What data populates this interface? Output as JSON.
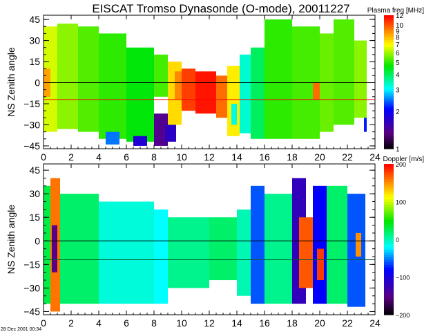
{
  "title": "EISCAT Tromso Dynasonde (O-mode),  20011227",
  "footer": "28 Dec 2001 00:34",
  "chart_data": [
    {
      "type": "heatmap",
      "ylabel": "NS Zenith angle",
      "xlim": [
        0,
        24
      ],
      "ylim": [
        -47,
        48
      ],
      "xticks": [
        "0",
        "2",
        "4",
        "6",
        "8",
        "10",
        "12",
        "14",
        "16",
        "18",
        "20",
        "22",
        "24"
      ],
      "yticks": [
        "45",
        "30",
        "15",
        "0",
        "-15",
        "-30",
        "-45"
      ],
      "hlines": [
        {
          "y": 0,
          "color": "#000000"
        },
        {
          "y": -12,
          "color": "#ff0000"
        }
      ],
      "colorbar": {
        "label": "Plasma freq [MHz]",
        "scale": "log",
        "range": [
          1,
          12
        ],
        "ticks": [
          "1",
          "2",
          "3",
          "4",
          "5",
          "6",
          "7",
          "8",
          "9",
          "10",
          "12"
        ]
      },
      "cells_note": "blocks: [hour_start, hour_end, angle_min, angle_max, value]",
      "blocks": [
        [
          0,
          1,
          -35,
          40,
          6.5
        ],
        [
          0,
          0.5,
          -10,
          10,
          8.5
        ],
        [
          1,
          2.5,
          -33,
          42,
          5.8
        ],
        [
          2.5,
          4,
          -35,
          40,
          5.3
        ],
        [
          4,
          6,
          -40,
          35,
          5.0
        ],
        [
          4.5,
          5.5,
          -44,
          -35,
          2.5
        ],
        [
          6,
          8,
          -42,
          25,
          4.6
        ],
        [
          6.5,
          7.5,
          -45,
          -38,
          1.8
        ],
        [
          8,
          9,
          -10,
          20,
          5.2
        ],
        [
          8,
          9,
          -45,
          -22,
          1.4
        ],
        [
          9,
          10,
          -30,
          15,
          7.5
        ],
        [
          8.8,
          9.6,
          -42,
          -30,
          1.7
        ],
        [
          9.5,
          10.2,
          -12,
          8,
          9
        ],
        [
          10,
          11,
          -20,
          10,
          10.5
        ],
        [
          11,
          12.5,
          -22,
          8,
          11.5
        ],
        [
          12.5,
          13.3,
          -25,
          5,
          9.5
        ],
        [
          13.3,
          14.2,
          -38,
          12,
          7.2
        ],
        [
          13.6,
          14,
          -30,
          -15,
          3.2
        ],
        [
          14.2,
          15,
          -36,
          20,
          3.3
        ],
        [
          15,
          16,
          -40,
          25,
          4
        ],
        [
          16,
          18,
          -40,
          45,
          5.0
        ],
        [
          18,
          20,
          -40,
          40,
          5.2
        ],
        [
          19.5,
          20.3,
          -12,
          0,
          9.5
        ],
        [
          20,
          21,
          -35,
          35,
          5.5
        ],
        [
          21,
          22.5,
          -30,
          45,
          5.3
        ],
        [
          22.5,
          23.4,
          -25,
          30,
          5.8
        ],
        [
          23.2,
          23.4,
          -35,
          -25,
          2.2
        ]
      ]
    },
    {
      "type": "heatmap",
      "ylabel": "NS Zenith angle",
      "xlim": [
        0,
        24
      ],
      "ylim": [
        -47,
        49
      ],
      "xticks": [
        "0",
        "2",
        "4",
        "6",
        "8",
        "10",
        "12",
        "14",
        "16",
        "18",
        "20",
        "22",
        "24"
      ],
      "yticks": [
        "45",
        "30",
        "15",
        "0",
        "-15",
        "-30",
        "-45"
      ],
      "hlines": [
        {
          "y": 0,
          "color": "#000000"
        },
        {
          "y": -12,
          "color": "#006030"
        }
      ],
      "colorbar": {
        "label": "Doppler [m/s]",
        "scale": "linear",
        "range": [
          -200,
          200
        ],
        "ticks": [
          "200",
          "100",
          "0",
          "-100",
          "-200"
        ]
      },
      "blocks": [
        [
          0,
          0.5,
          -40,
          35,
          30
        ],
        [
          0.5,
          1.2,
          -45,
          40,
          160
        ],
        [
          0.6,
          1,
          -20,
          10,
          -150
        ],
        [
          1.2,
          4,
          -40,
          30,
          20
        ],
        [
          4,
          8,
          -40,
          25,
          -10
        ],
        [
          8,
          9,
          -40,
          20,
          -20
        ],
        [
          9,
          12,
          -30,
          15,
          10
        ],
        [
          12,
          14,
          -25,
          15,
          20
        ],
        [
          14,
          15,
          -35,
          20,
          0
        ],
        [
          15,
          16,
          -40,
          35,
          -60
        ],
        [
          16,
          18,
          -40,
          30,
          10
        ],
        [
          18,
          19,
          -40,
          40,
          -120
        ],
        [
          18.5,
          19.5,
          -30,
          15,
          170
        ],
        [
          19.5,
          20.5,
          -40,
          35,
          -80
        ],
        [
          19.8,
          20.3,
          -25,
          -5,
          180
        ],
        [
          20.5,
          22,
          -40,
          35,
          20
        ],
        [
          22,
          23.3,
          -42,
          30,
          -60
        ],
        [
          22.6,
          23,
          -10,
          5,
          150
        ]
      ]
    }
  ]
}
